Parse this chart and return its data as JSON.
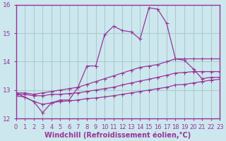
{
  "bg_color": "#cce8ee",
  "grid_color": "#aacccc",
  "line_color": "#993399",
  "marker_color": "#993399",
  "x_min": 0,
  "x_max": 23,
  "y_min": 12,
  "y_max": 16,
  "xlabel": "Windchill (Refroidissement éolien,°C)",
  "xlabel_fontsize": 7.0,
  "tick_fontsize": 6.0,
  "tick_color": "#993399",
  "axis_color": "#993399",
  "curve_main_x": [
    0,
    2,
    3,
    4,
    5,
    6,
    7,
    8,
    9,
    10,
    11,
    12,
    13,
    14,
    15,
    16,
    17,
    18,
    19,
    20,
    21,
    22,
    23
  ],
  "curve_main_y": [
    12.9,
    12.6,
    12.2,
    12.55,
    12.65,
    12.65,
    13.1,
    13.85,
    13.85,
    14.95,
    15.25,
    15.1,
    15.05,
    14.8,
    15.9,
    15.85,
    15.35,
    14.1,
    14.05,
    13.75,
    13.4,
    13.45,
    13.45
  ],
  "curve_upper_x": [
    0,
    1,
    2,
    3,
    4,
    5,
    6,
    7,
    8,
    9,
    10,
    11,
    12,
    13,
    14,
    15,
    16,
    17,
    18,
    19,
    20,
    21,
    22,
    23
  ],
  "curve_upper_y": [
    12.9,
    12.9,
    12.85,
    12.9,
    12.95,
    13.0,
    13.05,
    13.1,
    13.2,
    13.3,
    13.4,
    13.5,
    13.6,
    13.7,
    13.8,
    13.85,
    13.9,
    14.0,
    14.1,
    14.1,
    14.1,
    14.1,
    14.1,
    14.1
  ],
  "curve_mid_x": [
    0,
    1,
    2,
    3,
    4,
    5,
    6,
    7,
    8,
    9,
    10,
    11,
    12,
    13,
    14,
    15,
    16,
    17,
    18,
    19,
    20,
    21,
    22,
    23
  ],
  "curve_mid_y": [
    12.85,
    12.85,
    12.8,
    12.8,
    12.85,
    12.85,
    12.88,
    12.9,
    12.95,
    13.0,
    13.05,
    13.1,
    13.18,
    13.25,
    13.32,
    13.38,
    13.45,
    13.52,
    13.6,
    13.62,
    13.65,
    13.65,
    13.65,
    13.65
  ],
  "curve_low_x": [
    0,
    1,
    2,
    3,
    4,
    5,
    6,
    7,
    8,
    9,
    10,
    11,
    12,
    13,
    14,
    15,
    16,
    17,
    18,
    19,
    20,
    21,
    22,
    23
  ],
  "curve_low_y": [
    12.8,
    12.75,
    12.6,
    12.5,
    12.55,
    12.6,
    12.62,
    12.65,
    12.7,
    12.72,
    12.76,
    12.8,
    12.85,
    12.9,
    12.95,
    13.0,
    13.05,
    13.1,
    13.18,
    13.2,
    13.25,
    13.3,
    13.35,
    13.38
  ]
}
